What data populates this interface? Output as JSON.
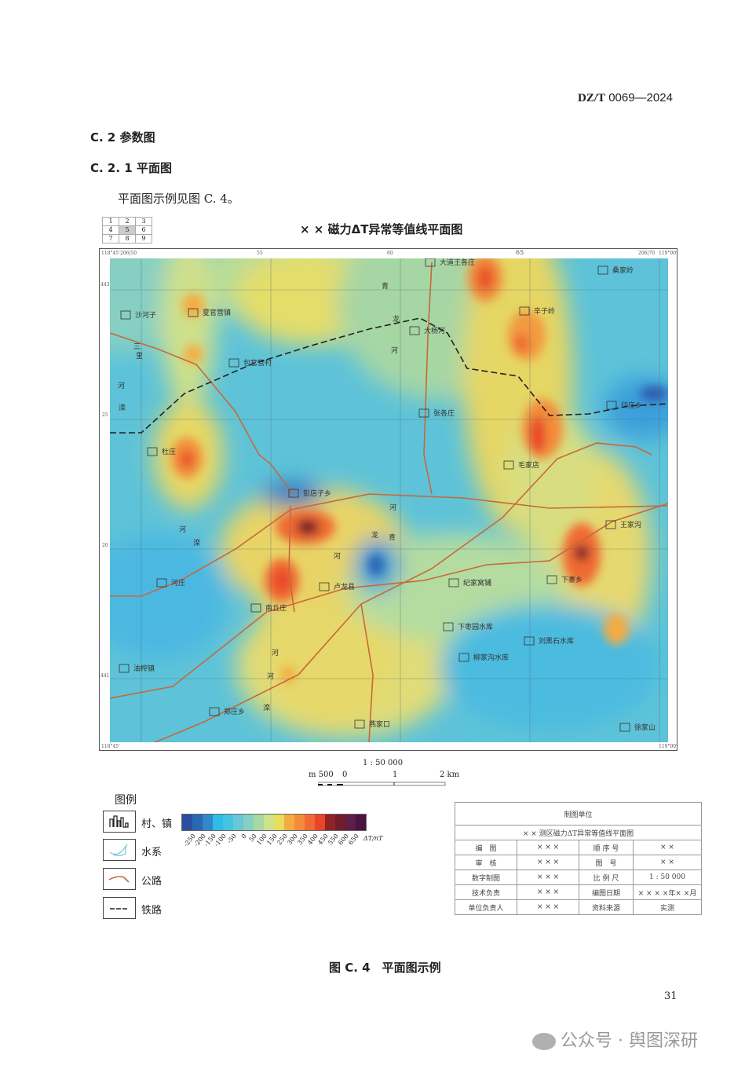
{
  "header": {
    "standard": "DZ/T",
    "number": "0069—2024"
  },
  "section": {
    "c2": "C. 2   参数图",
    "c21": "C. 2. 1   平面图",
    "text": "平面图示例见图 C. 4。"
  },
  "sheet_index": [
    "1",
    "2",
    "3",
    "4",
    "5",
    "6",
    "7",
    "8",
    "9"
  ],
  "map": {
    "title": "× × 磁力ΔT异常等值线平面图",
    "ticks": {
      "tl": "118°45'",
      "top": [
        "206|50",
        "55",
        "60",
        "65",
        "206|70"
      ],
      "tr": "119°00'",
      "left": [
        "4430",
        "25",
        "20",
        "4415"
      ],
      "bl": "118°45'",
      "br": "119°00'"
    },
    "places": [
      "大道王各庄",
      "桑家岭",
      "沙河子",
      "夏官营镇",
      "包官营村",
      "大杨河",
      "辛子岭",
      "张各庄",
      "印庄乡",
      "杜庄",
      "毛家店",
      "彭店子乡",
      "王家沟",
      "河庄",
      "卢龙县",
      "南丘庄",
      "下寨乡",
      "纪家窝铺",
      "下枣园水库",
      "刘黑石水库",
      "柳家沟水库",
      "油榨镇",
      "郑庄乡",
      "燕家口",
      "徐家山"
    ],
    "rivers": [
      "青",
      "龙",
      "河",
      "三",
      "里",
      "河",
      "滦",
      "河",
      "滦",
      "河",
      "河",
      "青",
      "龙",
      "河",
      "滦",
      "河"
    ]
  },
  "scale": {
    "ratio": "1 : 50 000",
    "labels": [
      "m 500",
      "0",
      "1",
      "2 km"
    ]
  },
  "legend": {
    "title": "图例",
    "items": [
      {
        "label": "村、镇",
        "icon": "village-icon"
      },
      {
        "label": "水系",
        "icon": "water-icon"
      },
      {
        "label": "公路",
        "icon": "road-icon"
      },
      {
        "label": "铁路",
        "icon": "railway-icon"
      }
    ],
    "colorbar": {
      "colors": [
        "#2a4fa0",
        "#2c67b4",
        "#3187c8",
        "#2fbbe8",
        "#45c3e0",
        "#69c7d6",
        "#85cfc4",
        "#a8d8a0",
        "#cde28a",
        "#e8dd5c",
        "#f3ac42",
        "#f28c3a",
        "#ef6a33",
        "#e8452a",
        "#8e2424",
        "#721c2c",
        "#5e1e4a",
        "#4a1440"
      ],
      "labels": [
        "-250",
        "-200",
        "-150",
        "-100",
        "-50",
        "0",
        "50",
        "100",
        "150",
        "250",
        "300",
        "350",
        "400",
        "450",
        "550",
        "600",
        "650"
      ],
      "unit": "ΔT/nT"
    }
  },
  "title_block": {
    "unit": "制图单位",
    "name": "× × 测区磁力ΔT异常等值线平面图",
    "rows": [
      [
        "编　图",
        "× × ×",
        "顺 序 号",
        "× ×"
      ],
      [
        "审　核",
        "× × ×",
        "图　号",
        "× ×"
      ],
      [
        "数字制图",
        "× × ×",
        "比 例 尺",
        "1 : 50 000"
      ],
      [
        "技术负责",
        "× × ×",
        "编图日期",
        "× × × ×年× ×月"
      ],
      [
        "单位负责人",
        "× × ×",
        "资料来源",
        "实测"
      ]
    ]
  },
  "caption": "图 C. 4　平面图示例",
  "page_number": "31",
  "watermark": "公众号 · 舆图深研"
}
